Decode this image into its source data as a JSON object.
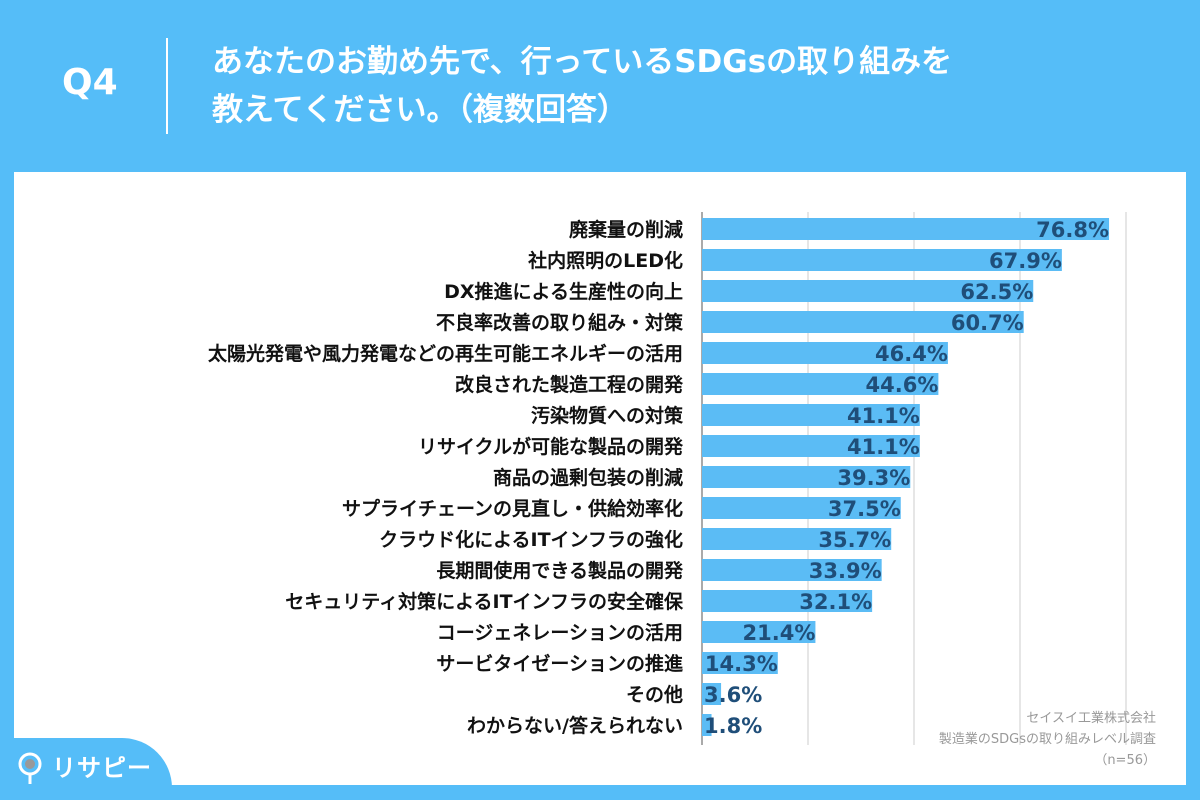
{
  "header": {
    "question": "Q4",
    "title_line1": "あなたのお勤め先で、行っているSDGsの取り組みを",
    "title_line2": "教えてください。（複数回答）"
  },
  "source": {
    "company": "セイスイ工業株式会社",
    "survey": "製造業のSDGsの取り組みレベル調査",
    "n": "（n=56）"
  },
  "logo": {
    "text": "リサピー"
  },
  "colors": {
    "header_bg": "#55bdf8",
    "bar": "#5bbcf5",
    "value_label": "#1f4e79",
    "grid": "#cccccc"
  },
  "chart_data": {
    "type": "bar",
    "orientation": "horizontal",
    "xlim": [
      0,
      80
    ],
    "grid": true,
    "value_suffix": "%",
    "categories": [
      "廃棄量の削減",
      "社内照明のLED化",
      "DX推進による生産性の向上",
      "不良率改善の取り組み・対策",
      "太陽光発電や風力発電などの再生可能エネルギーの活用",
      "改良された製造工程の開発",
      "汚染物質への対策",
      "リサイクルが可能な製品の開発",
      "商品の過剰包装の削減",
      "サプライチェーンの見直し・供給効率化",
      "クラウド化によるITインフラの強化",
      "長期間使用できる製品の開発",
      "セキュリティ対策によるITインフラの安全確保",
      "コージェネレーションの活用",
      "サービタイゼーションの推進",
      "その他",
      "わからない/答えられない"
    ],
    "values": [
      76.8,
      67.9,
      62.5,
      60.7,
      46.4,
      44.6,
      41.1,
      41.1,
      39.3,
      37.5,
      35.7,
      33.9,
      32.1,
      21.4,
      14.3,
      3.6,
      1.8
    ]
  }
}
